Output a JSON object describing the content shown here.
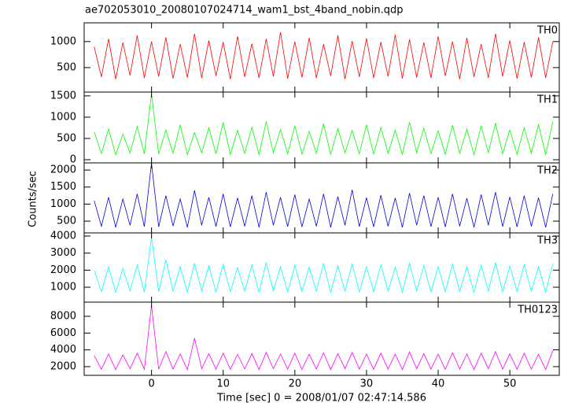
{
  "chart_data": {
    "type": "line",
    "title": "ae702053010_20080107024714_wam1_bst_4band_nobin.qdp",
    "xlabel": "Time [sec] 0 = 2008/01/07 02:47:14.586",
    "ylabel": "Counts/sec",
    "xlim": [
      -9.4,
      56.9
    ],
    "xticks": [
      0,
      10,
      20,
      30,
      40,
      50
    ],
    "x": [
      -8,
      -7,
      -6,
      -5,
      -4,
      -3,
      -2,
      -1,
      0,
      1,
      2,
      3,
      4,
      5,
      6,
      7,
      8,
      9,
      10,
      11,
      12,
      13,
      14,
      15,
      16,
      17,
      18,
      19,
      20,
      21,
      22,
      23,
      24,
      25,
      26,
      27,
      28,
      29,
      30,
      31,
      32,
      33,
      34,
      35,
      36,
      37,
      38,
      39,
      40,
      41,
      42,
      43,
      44,
      45,
      46,
      47,
      48,
      49,
      50,
      51,
      52,
      53,
      54,
      55,
      56
    ],
    "panels": [
      {
        "name": "TH0",
        "color": "#ff0000",
        "ylim": [
          30,
          1360
        ],
        "yticks": [
          500,
          1000
        ],
        "values": [
          900,
          320,
          1050,
          280,
          980,
          350,
          1120,
          300,
          1000,
          330,
          1080,
          290,
          950,
          310,
          1150,
          300,
          1020,
          340,
          990,
          280,
          1100,
          320,
          960,
          300,
          1050,
          330,
          1180,
          290,
          1000,
          310,
          1070,
          300,
          950,
          340,
          1120,
          280,
          1010,
          320,
          1060,
          300,
          990,
          330,
          1130,
          290,
          1040,
          310,
          980,
          300,
          1100,
          340,
          1000,
          280,
          1070,
          320,
          950,
          300,
          1150,
          330,
          1020,
          290,
          990,
          310,
          1080,
          300,
          1000
        ]
      },
      {
        "name": "TH1",
        "color": "#00ff00",
        "ylim": [
          -74,
          1590
        ],
        "yticks": [
          0,
          500,
          1000,
          1500
        ],
        "values": [
          650,
          150,
          720,
          120,
          600,
          160,
          780,
          140,
          1550,
          130,
          700,
          150,
          820,
          120,
          640,
          160,
          750,
          140,
          880,
          130,
          690,
          150,
          760,
          120,
          900,
          160,
          710,
          140,
          800,
          130,
          670,
          150,
          850,
          120,
          730,
          160,
          690,
          140,
          820,
          130,
          760,
          150,
          700,
          120,
          880,
          160,
          740,
          140,
          680,
          130,
          810,
          150,
          720,
          120,
          790,
          160,
          860,
          140,
          700,
          130,
          750,
          150,
          830,
          120,
          900
        ]
      },
      {
        "name": "TH2",
        "color": "#0000dd",
        "ylim": [
          155,
          2210
        ],
        "yticks": [
          500,
          1000,
          1500,
          2000
        ],
        "values": [
          1100,
          350,
          1200,
          320,
          1150,
          380,
          1300,
          340,
          2200,
          330,
          1250,
          360,
          1150,
          320,
          1400,
          380,
          1200,
          340,
          1300,
          330,
          1180,
          350,
          1250,
          320,
          1350,
          380,
          1200,
          340,
          1280,
          330,
          1150,
          350,
          1300,
          320,
          1220,
          380,
          1420,
          340,
          1190,
          330,
          1260,
          350,
          1180,
          320,
          1320,
          380,
          1250,
          340,
          1200,
          330,
          1300,
          350,
          1170,
          320,
          1280,
          380,
          1350,
          340,
          1210,
          330,
          1250,
          350,
          1190,
          320,
          1300
        ]
      },
      {
        "name": "TH3",
        "color": "#00ffff",
        "ylim": [
          125,
          4185
        ],
        "yticks": [
          1000,
          2000,
          3000,
          4000
        ],
        "values": [
          2000,
          750,
          2200,
          700,
          2100,
          780,
          2300,
          720,
          3950,
          740,
          2600,
          760,
          2200,
          700,
          2400,
          780,
          2250,
          720,
          2350,
          740,
          2150,
          760,
          2300,
          700,
          2450,
          780,
          2200,
          720,
          2280,
          740,
          2180,
          760,
          2400,
          700,
          2250,
          780,
          2350,
          720,
          2200,
          740,
          2300,
          760,
          2180,
          700,
          2420,
          780,
          2260,
          720,
          2200,
          740,
          2350,
          760,
          2200,
          700,
          2300,
          780,
          2450,
          720,
          2230,
          740,
          2320,
          760,
          2200,
          700,
          2400
        ]
      },
      {
        "name": "TH0123",
        "color": "#ff00ff",
        "ylim": [
          965,
          9690
        ],
        "yticks": [
          2000,
          4000,
          6000,
          8000
        ],
        "values": [
          3300,
          1700,
          3500,
          1650,
          3400,
          1750,
          3600,
          1700,
          9300,
          1680,
          3800,
          1720,
          3500,
          1650,
          5400,
          1750,
          3550,
          1700,
          3600,
          1680,
          3450,
          1720,
          3550,
          1650,
          3700,
          1750,
          3500,
          1700,
          3600,
          1680,
          3480,
          1720,
          3650,
          1650,
          3550,
          1750,
          3700,
          1700,
          3500,
          1680,
          3600,
          1720,
          3480,
          1650,
          3750,
          1750,
          3550,
          1700,
          3500,
          1680,
          3650,
          1720,
          3500,
          1650,
          3600,
          1750,
          3800,
          1700,
          3520,
          1680,
          3600,
          1720,
          3480,
          1650,
          3900
        ]
      }
    ]
  }
}
